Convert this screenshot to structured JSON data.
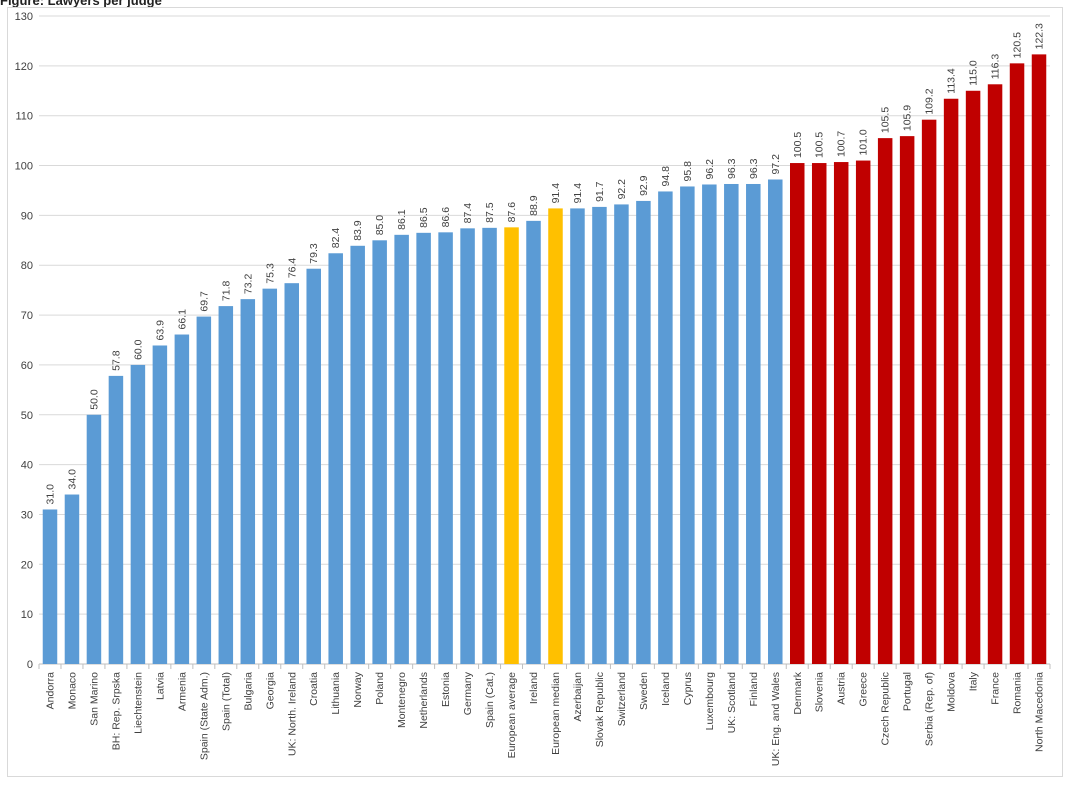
{
  "caption": "Figure: Lawyers per judge",
  "chart_data": {
    "type": "bar",
    "title": "",
    "xlabel": "",
    "ylabel": "",
    "ylim": [
      0,
      130
    ],
    "yticks": [
      0,
      10,
      20,
      30,
      40,
      50,
      60,
      70,
      80,
      90,
      100,
      110,
      120,
      130
    ],
    "grid": true,
    "legend": "none",
    "colors": {
      "blue": "#5b9bd5",
      "yellow": "#ffc000",
      "red": "#c00000",
      "grid": "#d9d9d9",
      "axis": "#bfbfbf",
      "text": "#404040"
    },
    "categories": [
      "Andorra",
      "Monaco",
      "San Marino",
      "BH: Rep. Srpska",
      "Liechtenstein",
      "Latvia",
      "Armenia",
      "Spain (State Adm.)",
      "Spain (Total)",
      "Bulgaria",
      "Georgia",
      "UK: North. Ireland",
      "Croatia",
      "Lithuania",
      "Norway",
      "Poland",
      "Montenegro",
      "Netherlands",
      "Estonia",
      "Germany",
      "Spain (Cat.)",
      "European average",
      "Ireland",
      "European median",
      "Azerbaijan",
      "Slovak Republic",
      "Switzerland",
      "Sweden",
      "Iceland",
      "Cyprus",
      "Luxembourg",
      "UK: Scotland",
      "Finland",
      "UK: Eng. and Wales",
      "Denmark",
      "Slovenia",
      "Austria",
      "Greece",
      "Czech Republic",
      "Portugal",
      "Serbia (Rep. of)",
      "Moldova",
      "Italy",
      "France",
      "Romania",
      "North Macedonia"
    ],
    "values": [
      31.0,
      34.0,
      50.0,
      57.8,
      60.0,
      63.9,
      66.1,
      69.7,
      71.8,
      73.2,
      75.3,
      76.4,
      79.3,
      82.4,
      83.9,
      85.0,
      86.1,
      86.5,
      86.6,
      87.4,
      87.5,
      87.6,
      88.9,
      91.4,
      91.4,
      91.7,
      92.2,
      92.9,
      94.8,
      95.8,
      96.2,
      96.3,
      96.3,
      97.2,
      100.5,
      100.5,
      100.7,
      101.0,
      105.5,
      105.9,
      109.2,
      113.4,
      115.0,
      116.3,
      120.5,
      122.3
    ],
    "labels": [
      "31.0",
      "34.0",
      "50.0",
      "57.8",
      "60.0",
      "63.9",
      "66.1",
      "69.7",
      "71.8",
      "73.2",
      "75.3",
      "76.4",
      "79.3",
      "82.4",
      "83.9",
      "85.0",
      "86.1",
      "86.5",
      "86.6",
      "87.4",
      "87.5",
      "87.6",
      "88.9",
      "91.4",
      "91.4",
      "91.7",
      "92.2",
      "92.9",
      "94.8",
      "95.8",
      "96.2",
      "96.3",
      "96.3",
      "97.2",
      "100.5",
      "100.5",
      "100.7",
      "101.0",
      "105.5",
      "105.9",
      "109.2",
      "113.4",
      "115.0",
      "116.3",
      "120.5",
      "122.3"
    ],
    "bar_color_keys": [
      "blue",
      "blue",
      "blue",
      "blue",
      "blue",
      "blue",
      "blue",
      "blue",
      "blue",
      "blue",
      "blue",
      "blue",
      "blue",
      "blue",
      "blue",
      "blue",
      "blue",
      "blue",
      "blue",
      "blue",
      "blue",
      "yellow",
      "blue",
      "yellow",
      "blue",
      "blue",
      "blue",
      "blue",
      "blue",
      "blue",
      "blue",
      "blue",
      "blue",
      "blue",
      "red",
      "red",
      "red",
      "red",
      "red",
      "red",
      "red",
      "red",
      "red",
      "red",
      "red",
      "red"
    ]
  }
}
